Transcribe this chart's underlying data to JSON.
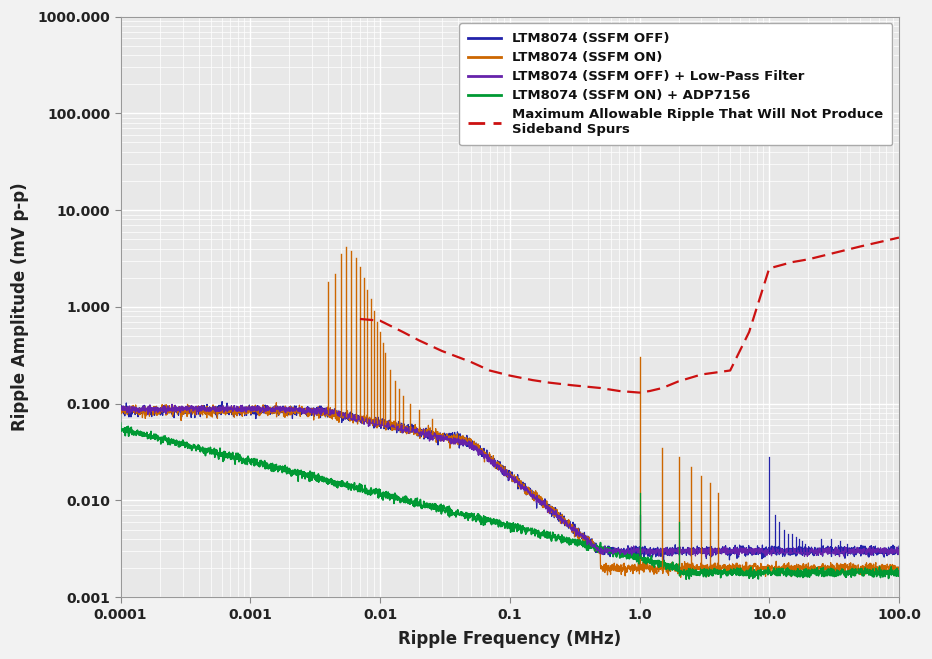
{
  "title": "",
  "xlabel": "Ripple Frequency (MHz)",
  "ylabel": "Ripple Amplitude (mV p-p)",
  "xlim": [
    0.0001,
    100.0
  ],
  "ylim": [
    0.001,
    1000.0
  ],
  "xticks": [
    0.0001,
    0.001,
    0.01,
    0.1,
    1.0,
    10.0,
    100.0
  ],
  "xticklabels": [
    "0.0001",
    "0.001",
    "0.01",
    "0.1",
    "1.0",
    "10.0",
    "100.0"
  ],
  "yticks": [
    0.001,
    0.01,
    0.1,
    1.0,
    10.0,
    100.0,
    1000.0
  ],
  "yticklabels": [
    "0.001",
    "0.010",
    "0.100",
    "1.000",
    "10.000",
    "100.000",
    "1000.000"
  ],
  "fig_bg_color": "#f2f2f2",
  "plot_bg_color": "#e8e8e8",
  "grid_color": "#ffffff",
  "legend_entries": [
    "LTM8074 (SSFM OFF)",
    "LTM8074 (SSFM ON)",
    "LTM8074 (SSFM OFF) + Low-Pass Filter",
    "LTM8074 (SSFM ON) + ADP7156",
    "Maximum Allowable Ripple That Will Not Produce\nSideband Spurs"
  ],
  "colors": {
    "blue": "#2222aa",
    "orange": "#cc6600",
    "purple": "#6622aa",
    "green": "#009933",
    "red_dashed": "#cc1111"
  },
  "red_x": [
    0.007,
    0.01,
    0.015,
    0.02,
    0.03,
    0.05,
    0.07,
    0.1,
    0.15,
    0.2,
    0.3,
    0.5,
    0.7,
    1.0,
    1.2,
    1.5,
    2.0,
    3.0,
    5.0,
    7.0,
    10.0,
    15.0,
    20.0,
    50.0,
    100.0
  ],
  "red_y": [
    0.75,
    0.72,
    0.55,
    0.45,
    0.35,
    0.27,
    0.22,
    0.195,
    0.175,
    0.165,
    0.155,
    0.145,
    0.135,
    0.13,
    0.135,
    0.145,
    0.17,
    0.2,
    0.22,
    0.55,
    2.5,
    2.9,
    3.1,
    4.2,
    5.2
  ]
}
